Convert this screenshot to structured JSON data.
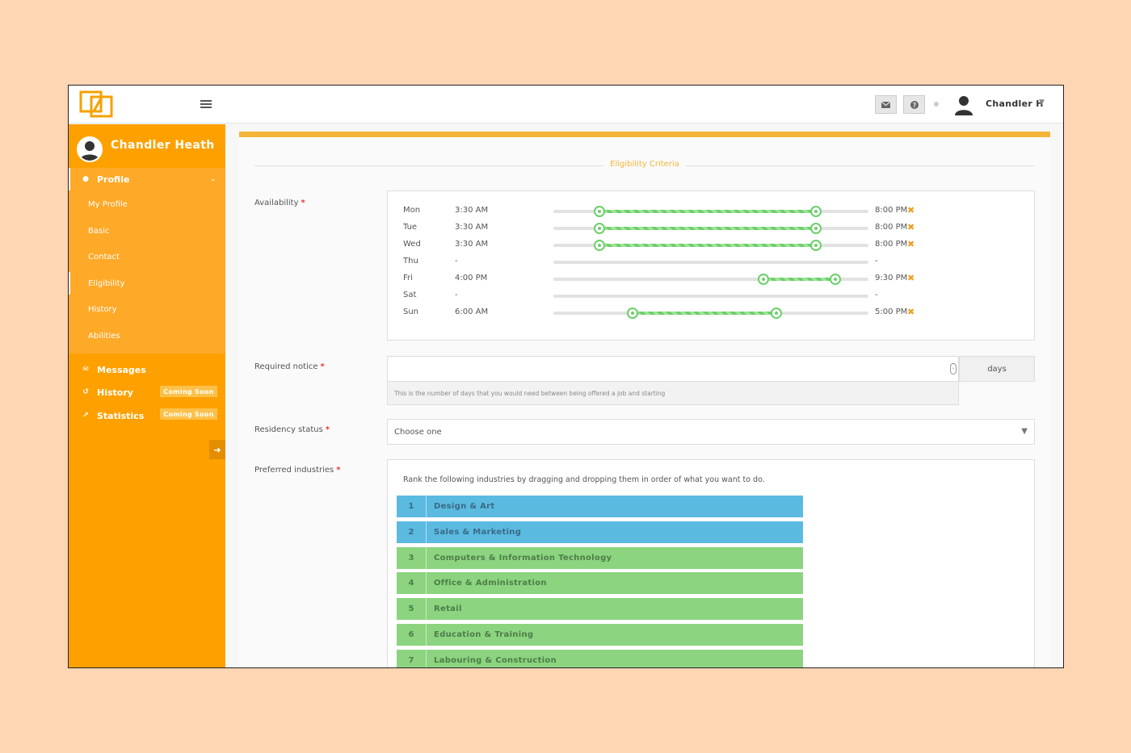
{
  "header": {
    "user_name": "Chandler H",
    "icons": {
      "mail": "envelope-icon",
      "help": "question-circle-icon",
      "avatar": "user-silhouette-icon"
    }
  },
  "colors": {
    "accent": "#fea100",
    "highlight": "#f4b63a",
    "range": "#6ccf6a",
    "industry_blue": "#5bbae0",
    "industry_green": "#8cd47f"
  },
  "sidebar": {
    "user_name": "Chandler Heath",
    "profile_label": "Profile",
    "submenu": [
      "My Profile",
      "Basic",
      "Contact",
      "Eligibility",
      "History",
      "Abilities"
    ],
    "active_submenu": "Eligibility",
    "messages_label": "Messages",
    "history_label": "History",
    "statistics_label": "Statistics",
    "coming_soon": "Coming Soon"
  },
  "main": {
    "section_title": "Eligibility Criteria",
    "availability": {
      "label": "Availability",
      "slider_min_hours": 0,
      "slider_max_hours": 24,
      "days": [
        {
          "name": "Mon",
          "start": "3:30 AM",
          "end": "8:00 PM",
          "start_h": 3.5,
          "end_h": 20
        },
        {
          "name": "Tue",
          "start": "3:30 AM",
          "end": "8:00 PM",
          "start_h": 3.5,
          "end_h": 20
        },
        {
          "name": "Wed",
          "start": "3:30 AM",
          "end": "8:00 PM",
          "start_h": 3.5,
          "end_h": 20
        },
        {
          "name": "Thu",
          "start": "-",
          "end": "-",
          "start_h": null,
          "end_h": null
        },
        {
          "name": "Fri",
          "start": "4:00 PM",
          "end": "9:30 PM",
          "start_h": 16,
          "end_h": 21.5
        },
        {
          "name": "Sat",
          "start": "-",
          "end": "-",
          "start_h": null,
          "end_h": null
        },
        {
          "name": "Sun",
          "start": "6:00 AM",
          "end": "5:00 PM",
          "start_h": 6,
          "end_h": 17
        }
      ]
    },
    "required_notice": {
      "label": "Required notice",
      "value": "",
      "addon": "days",
      "help": "This is the number of days that you would need between being offered a job and starting"
    },
    "residency": {
      "label": "Residency status",
      "selected": "Choose one"
    },
    "industries": {
      "label": "Preferred industries",
      "hint": "Rank the following industries by dragging and dropping them in order of what you want to do.",
      "items": [
        {
          "rank": "1",
          "name": "Design & Art",
          "color": "blue"
        },
        {
          "rank": "2",
          "name": "Sales & Marketing",
          "color": "blue"
        },
        {
          "rank": "3",
          "name": "Computers & Information Technology",
          "color": "green"
        },
        {
          "rank": "4",
          "name": "Office & Administration",
          "color": "green"
        },
        {
          "rank": "5",
          "name": "Retail",
          "color": "green"
        },
        {
          "rank": "6",
          "name": "Education & Training",
          "color": "green"
        },
        {
          "rank": "7",
          "name": "Labouring & Construction",
          "color": "green"
        }
      ]
    }
  }
}
